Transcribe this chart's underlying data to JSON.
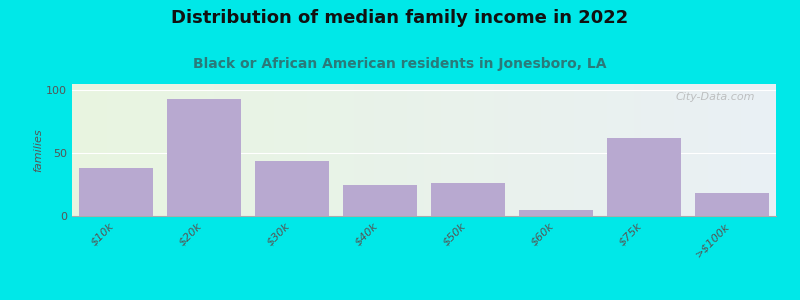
{
  "title": "Distribution of median family income in 2022",
  "subtitle": "Black or African American residents in Jonesboro, LA",
  "categories": [
    "$10k",
    "$20k",
    "$30k",
    "$40k",
    "$50k",
    "$60k",
    "$75k",
    ">$100k"
  ],
  "values": [
    38,
    93,
    44,
    25,
    26,
    5,
    62,
    18
  ],
  "bar_color": "#b8a9d0",
  "background_color": "#00e8e8",
  "plot_bg_color_left": "#e8f5e0",
  "plot_bg_color_right": "#eaf0f5",
  "ylabel": "families",
  "ylim": [
    0,
    105
  ],
  "yticks": [
    0,
    50,
    100
  ],
  "title_fontsize": 13,
  "subtitle_fontsize": 10,
  "watermark_text": "City-Data.com",
  "bar_edge_color": "none",
  "title_color": "#111111",
  "subtitle_color": "#2a7a7a",
  "tick_color": "#555555",
  "grid_color": "#ffffff",
  "spine_color": "#aaaaaa"
}
